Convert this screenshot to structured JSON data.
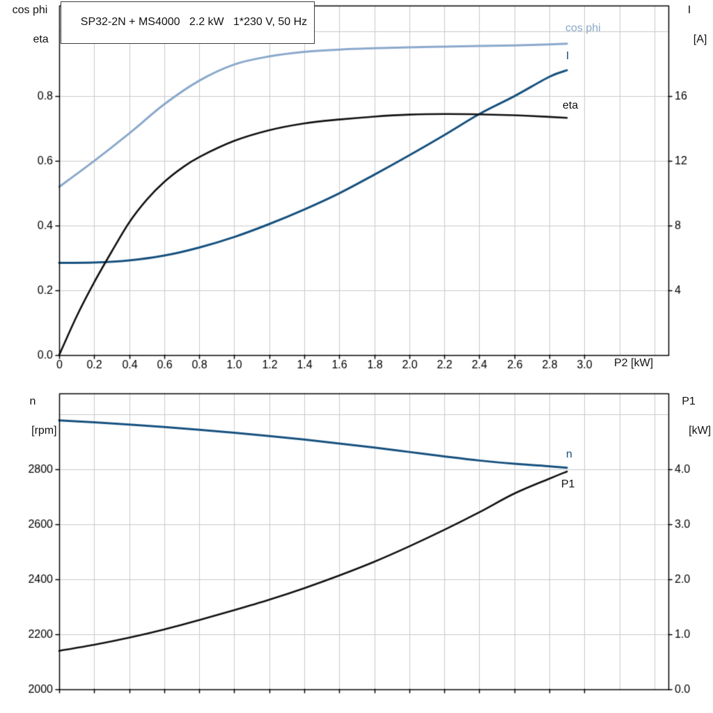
{
  "header": {
    "title": "SP32-2N + MS4000   2.2 kW   1*230 V, 50 Hz"
  },
  "colors": {
    "light_blue": "#8aa8cc",
    "dark_blue": "#15507e",
    "black": "#111111",
    "grid": "#c9c9c9",
    "axis": "#000000"
  },
  "chart_data": [
    {
      "type": "line",
      "title": "SP32-2N + MS4000   2.2 kW   1*230 V, 50 Hz",
      "xlabel": "P2 [kW]",
      "ylabel_left_lines": [
        "cos phi",
        "eta"
      ],
      "ylabel_right_lines": [
        "I",
        "[A]"
      ],
      "xlim": [
        0,
        3.48
      ],
      "ylim_left": [
        0,
        1.08
      ],
      "ylim_right": [
        0,
        21.6
      ],
      "grid": true,
      "legend_position": "end-of-curve",
      "xticks": {
        "values": [
          0,
          0.2,
          0.4,
          0.6,
          0.8,
          1.0,
          1.2,
          1.4,
          1.6,
          1.8,
          2.0,
          2.2,
          2.4,
          2.6,
          2.8,
          3.0
        ],
        "labels": [
          "0",
          "0.2",
          "0.4",
          "0.6",
          "0.8",
          "1.0",
          "1.2",
          "1.4",
          "1.6",
          "1.8",
          "2.0",
          "2.2",
          "2.4",
          "2.6",
          "2.8",
          "3.0"
        ]
      },
      "yticks_left": {
        "values": [
          0,
          0.2,
          0.4,
          0.6,
          0.8
        ],
        "labels": [
          "0.0",
          "0.2",
          "0.4",
          "0.6",
          "0.8"
        ]
      },
      "yticks_right": {
        "values": [
          4,
          8,
          12,
          16
        ],
        "labels": [
          "4",
          "8",
          "12",
          "16"
        ]
      },
      "grid_x": [
        0.2,
        0.4,
        0.6,
        0.8,
        1.0,
        1.2,
        1.4,
        1.6,
        1.8,
        2.0,
        2.2,
        2.4,
        2.6,
        2.8,
        3.0,
        3.2,
        3.4
      ],
      "grid_y_left": [
        0.2,
        0.4,
        0.6,
        0.8,
        1.0
      ],
      "series": [
        {
          "name": "cos phi",
          "axis": "left",
          "color": "#8aa8cc",
          "width": 3,
          "points": [
            [
              0,
              0.52
            ],
            [
              0.2,
              0.6
            ],
            [
              0.4,
              0.685
            ],
            [
              0.6,
              0.775
            ],
            [
              0.8,
              0.848
            ],
            [
              1.0,
              0.898
            ],
            [
              1.2,
              0.923
            ],
            [
              1.4,
              0.937
            ],
            [
              1.6,
              0.944
            ],
            [
              1.8,
              0.948
            ],
            [
              2.0,
              0.951
            ],
            [
              2.2,
              0.953
            ],
            [
              2.4,
              0.955
            ],
            [
              2.6,
              0.957
            ],
            [
              2.8,
              0.96
            ],
            [
              2.9,
              0.962
            ]
          ]
        },
        {
          "name": "I",
          "axis": "right",
          "color": "#15507e",
          "width": 3,
          "points": [
            [
              0,
              5.7
            ],
            [
              0.2,
              5.72
            ],
            [
              0.4,
              5.85
            ],
            [
              0.6,
              6.15
            ],
            [
              0.8,
              6.65
            ],
            [
              1.0,
              7.3
            ],
            [
              1.2,
              8.1
            ],
            [
              1.4,
              9.0
            ],
            [
              1.6,
              10.0
            ],
            [
              1.8,
              11.15
            ],
            [
              2.0,
              12.35
            ],
            [
              2.2,
              13.6
            ],
            [
              2.4,
              14.9
            ],
            [
              2.6,
              16.0
            ],
            [
              2.8,
              17.2
            ],
            [
              2.9,
              17.6
            ]
          ]
        },
        {
          "name": "eta",
          "axis": "left",
          "color": "#111111",
          "width": 2.6,
          "points": [
            [
              0,
              0
            ],
            [
              0.1,
              0.12
            ],
            [
              0.2,
              0.225
            ],
            [
              0.3,
              0.32
            ],
            [
              0.4,
              0.41
            ],
            [
              0.5,
              0.48
            ],
            [
              0.6,
              0.535
            ],
            [
              0.7,
              0.578
            ],
            [
              0.8,
              0.612
            ],
            [
              1.0,
              0.662
            ],
            [
              1.2,
              0.695
            ],
            [
              1.4,
              0.716
            ],
            [
              1.6,
              0.728
            ],
            [
              1.8,
              0.737
            ],
            [
              2.0,
              0.743
            ],
            [
              2.2,
              0.745
            ],
            [
              2.4,
              0.744
            ],
            [
              2.6,
              0.741
            ],
            [
              2.8,
              0.736
            ],
            [
              2.9,
              0.733
            ]
          ]
        }
      ]
    },
    {
      "type": "line",
      "title": "",
      "xlabel": "",
      "ylabel_left_lines": [
        "n",
        "[rpm]"
      ],
      "ylabel_right_lines": [
        "P1",
        "[kW]"
      ],
      "xlim": [
        0,
        3.48
      ],
      "ylim_left": [
        2000,
        3076
      ],
      "ylim_right": [
        0,
        5.38
      ],
      "grid": true,
      "legend_position": "end-of-curve",
      "xticks": {
        "values": [
          0,
          0.2,
          0.4,
          0.6,
          0.8,
          1.0,
          1.2,
          1.4,
          1.6,
          1.8,
          2.0,
          2.2,
          2.4,
          2.6,
          2.8,
          3.0
        ],
        "labels": []
      },
      "yticks_left": {
        "values": [
          2000,
          2200,
          2400,
          2600,
          2800
        ],
        "labels": [
          "2000",
          "2200",
          "2400",
          "2600",
          "2800"
        ]
      },
      "yticks_right": {
        "values": [
          0,
          1,
          2,
          3,
          4
        ],
        "labels": [
          "0.0",
          "1.0",
          "2.0",
          "3.0",
          "4.0"
        ]
      },
      "grid_x": [
        0.2,
        0.4,
        0.6,
        0.8,
        1.0,
        1.2,
        1.4,
        1.6,
        1.8,
        2.0,
        2.2,
        2.4,
        2.6,
        2.8,
        3.0,
        3.2,
        3.4
      ],
      "grid_y_left": [
        2200,
        2400,
        2600,
        2800,
        3000
      ],
      "series": [
        {
          "name": "n",
          "axis": "left",
          "color": "#15507e",
          "width": 3,
          "points": [
            [
              0,
              2978
            ],
            [
              0.2,
              2971
            ],
            [
              0.4,
              2963
            ],
            [
              0.6,
              2954
            ],
            [
              0.8,
              2944
            ],
            [
              1.0,
              2933
            ],
            [
              1.2,
              2921
            ],
            [
              1.4,
              2908
            ],
            [
              1.6,
              2894
            ],
            [
              1.8,
              2879
            ],
            [
              2.0,
              2863
            ],
            [
              2.2,
              2847
            ],
            [
              2.4,
              2832
            ],
            [
              2.6,
              2820
            ],
            [
              2.8,
              2811
            ],
            [
              2.9,
              2806
            ]
          ]
        },
        {
          "name": "P1",
          "axis": "right",
          "color": "#111111",
          "width": 2.6,
          "points": [
            [
              0,
              0.7
            ],
            [
              0.2,
              0.81
            ],
            [
              0.4,
              0.94
            ],
            [
              0.6,
              1.09
            ],
            [
              0.8,
              1.26
            ],
            [
              1.0,
              1.44
            ],
            [
              1.2,
              1.63
            ],
            [
              1.4,
              1.84
            ],
            [
              1.6,
              2.07
            ],
            [
              1.8,
              2.32
            ],
            [
              2.0,
              2.6
            ],
            [
              2.2,
              2.9
            ],
            [
              2.4,
              3.22
            ],
            [
              2.6,
              3.56
            ],
            [
              2.8,
              3.83
            ],
            [
              2.9,
              3.96
            ]
          ]
        }
      ]
    }
  ]
}
